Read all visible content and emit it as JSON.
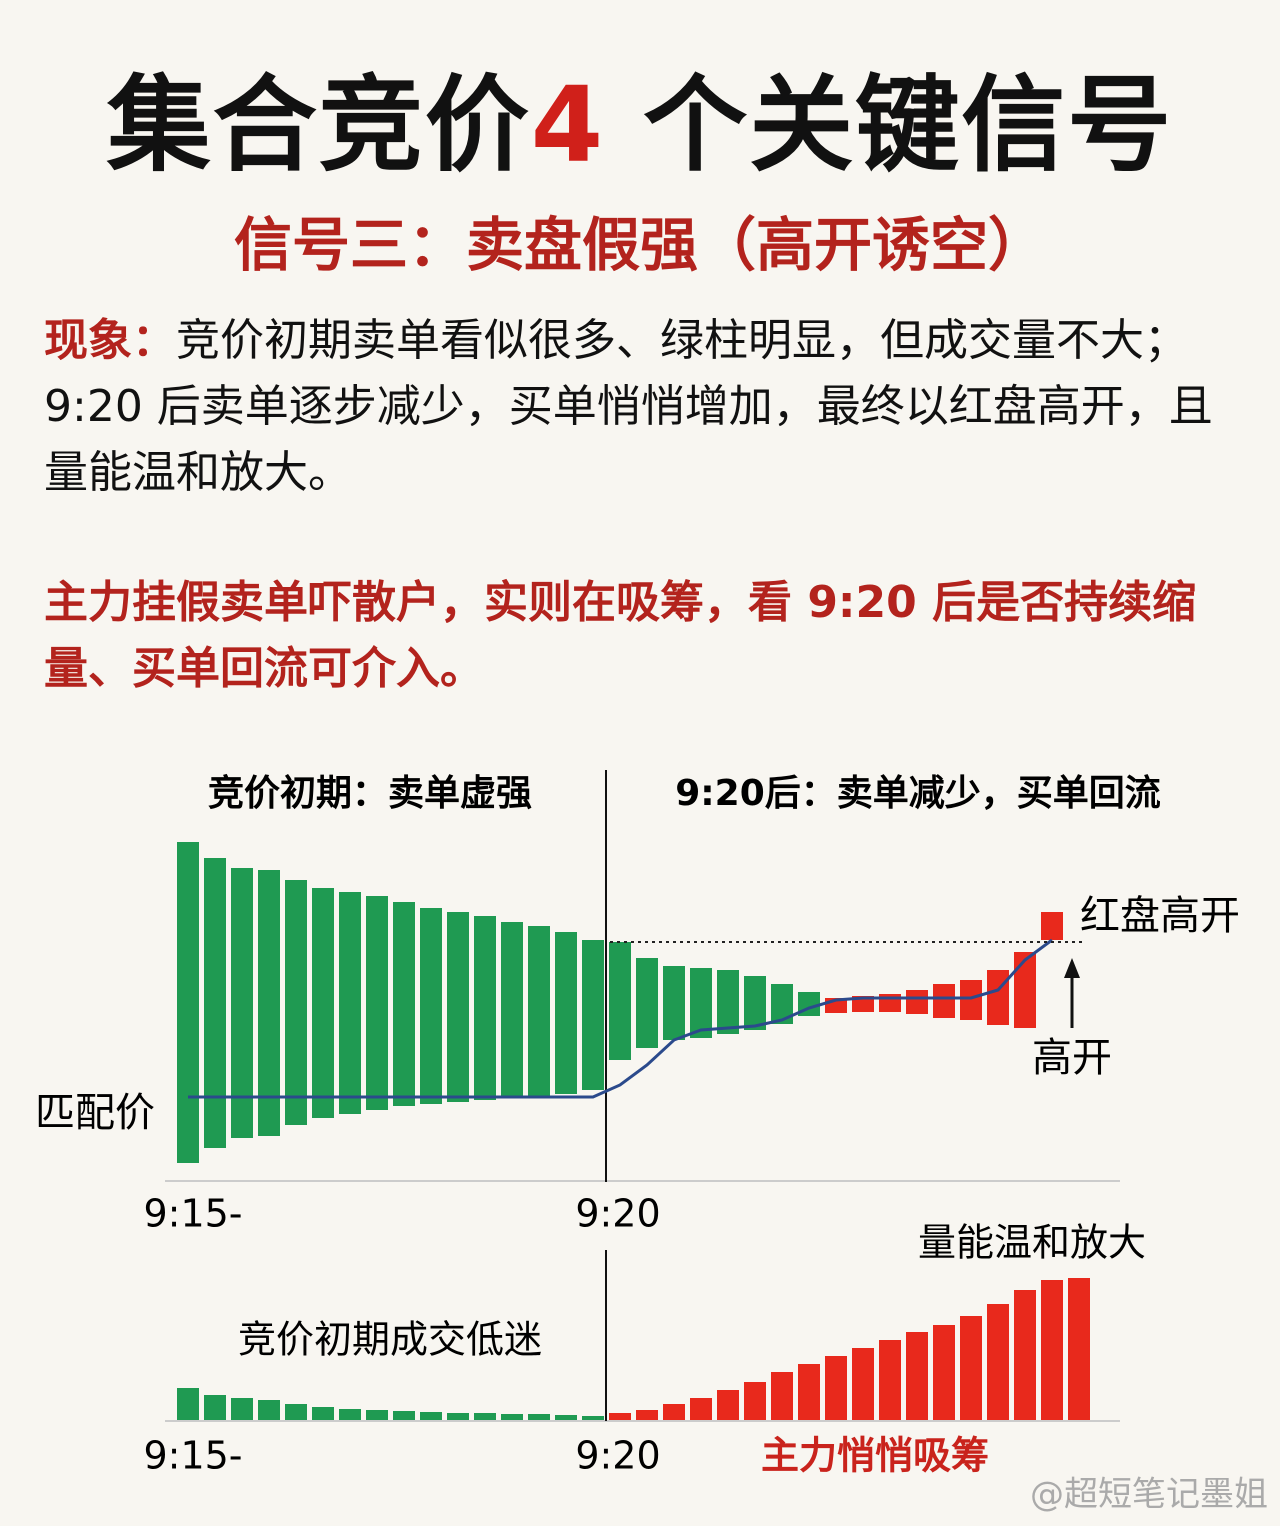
{
  "title": {
    "parts": [
      "集合竞价",
      "4",
      " 个关键信号"
    ]
  },
  "subtitle": "信号三：卖盘假强（高开诱空）",
  "phenomenon": {
    "label": "现象：",
    "text": "竞价初期卖单看似很多、绿柱明显，但成交量不大；9:20 后卖单逐步减少，买单悄悄增加，最终以红盘高开，且量能温和放大。"
  },
  "conclusion": "主力挂假卖单吓散户，实则在吸筹，看 9:20 后是否持续缩量、买单回流可介入。",
  "chart_data": [
    {
      "type": "range-bar",
      "panel_labels": [
        "竞价初期：卖单虚强",
        "9:20后：卖单减少，买单回流"
      ],
      "x_labels": [
        "9:15-",
        "9:20"
      ],
      "ylim": [
        0,
        340
      ],
      "series": [
        {
          "color": "#1f9a52",
          "low": [
            17,
            32,
            42,
            44,
            55,
            62,
            66,
            70,
            74,
            76,
            78,
            80,
            82,
            84,
            86,
            90,
            120,
            132,
            140,
            142,
            146,
            150,
            156,
            164,
            null,
            null,
            null,
            null,
            null,
            null,
            null,
            null,
            null
          ],
          "high": [
            338,
            322,
            312,
            310,
            300,
            292,
            288,
            284,
            278,
            272,
            268,
            264,
            258,
            254,
            248,
            240,
            238,
            222,
            214,
            212,
            210,
            204,
            196,
            188,
            null,
            null,
            null,
            null,
            null,
            null,
            null,
            null,
            null
          ]
        },
        {
          "color": "#e8291c",
          "low": [
            null,
            null,
            null,
            null,
            null,
            null,
            null,
            null,
            null,
            null,
            null,
            null,
            null,
            null,
            null,
            null,
            null,
            null,
            null,
            null,
            null,
            null,
            null,
            null,
            167,
            168,
            168,
            166,
            162,
            160,
            155,
            152,
            240
          ],
          "high": [
            null,
            null,
            null,
            null,
            null,
            null,
            null,
            null,
            null,
            null,
            null,
            null,
            null,
            null,
            null,
            null,
            null,
            null,
            null,
            null,
            null,
            null,
            null,
            null,
            182,
            184,
            186,
            190,
            196,
            200,
            210,
            228,
            268
          ]
        }
      ],
      "line": {
        "label": "匹配价",
        "color": "#2b4a8c",
        "values": [
          83,
          83,
          83,
          83,
          83,
          83,
          83,
          83,
          83,
          83,
          83,
          83,
          83,
          83,
          83,
          83,
          95,
          115,
          140,
          150,
          152,
          154,
          160,
          172,
          180,
          182,
          182,
          182,
          182,
          182,
          190,
          220,
          240
        ]
      },
      "reference": {
        "value": 238,
        "label": "红盘高开"
      },
      "annotation": "高开"
    },
    {
      "type": "bar",
      "x_labels": [
        "9:15-",
        "9:20"
      ],
      "ylim": [
        0,
        150
      ],
      "annotations": [
        "竞价初期成交低迷",
        "量能温和放大",
        "主力悄悄吸筹"
      ],
      "series": [
        {
          "color": "#1f9a52",
          "values": [
            32,
            25,
            22,
            20,
            16,
            13,
            11,
            10,
            9,
            8,
            7,
            7,
            6,
            6,
            5,
            4,
            null,
            null,
            null,
            null,
            null,
            null,
            null,
            null,
            null,
            null,
            null,
            null,
            null,
            null,
            null,
            null,
            null,
            null
          ]
        },
        {
          "color": "#e8291c",
          "values": [
            null,
            null,
            null,
            null,
            null,
            null,
            null,
            null,
            null,
            null,
            null,
            null,
            null,
            null,
            null,
            null,
            7,
            10,
            16,
            22,
            30,
            38,
            48,
            56,
            64,
            72,
            80,
            88,
            95,
            104,
            116,
            130,
            140,
            142
          ]
        }
      ]
    }
  ],
  "watermark": "@超短笔记墨姐"
}
